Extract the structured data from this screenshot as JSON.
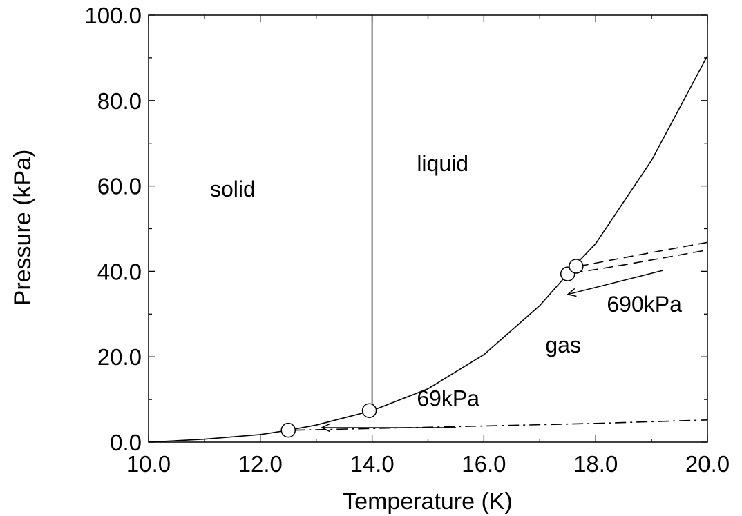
{
  "chart_data": {
    "type": "line",
    "title": "",
    "xlabel": "Temperature (K)",
    "ylabel": "Pressure (kPa)",
    "xlim": [
      10.0,
      20.0
    ],
    "ylim": [
      0.0,
      100.0
    ],
    "x_ticks": [
      10.0,
      12.0,
      14.0,
      16.0,
      18.0,
      20.0
    ],
    "y_ticks": [
      0.0,
      20.0,
      40.0,
      60.0,
      80.0,
      100.0
    ],
    "x_tick_labels": [
      "10.0",
      "12.0",
      "14.0",
      "16.0",
      "18.0",
      "20.0"
    ],
    "y_tick_labels": [
      "0.0",
      "20.0",
      "40.0",
      "60.0",
      "80.0",
      "100.0"
    ],
    "grid": false,
    "series": [
      {
        "style": "solid",
        "x": [
          10.0,
          11.0,
          12.0,
          12.5,
          13.0,
          14.0,
          15.0,
          16.0,
          17.0,
          17.5,
          17.6,
          18.0,
          19.0,
          20.0
        ],
        "y": [
          0.0,
          0.7,
          1.8,
          2.8,
          4.0,
          7.4,
          12.5,
          20.5,
          32.0,
          39.4,
          41.0,
          46.5,
          66.0,
          90.5
        ]
      },
      {
        "style": "solid",
        "x": [
          14.0,
          14.0
        ],
        "y": [
          7.4,
          100.0
        ]
      },
      {
        "style": "dashdot",
        "x": [
          12.6,
          14.0,
          16.0,
          18.0,
          20.0
        ],
        "y": [
          2.8,
          3.2,
          3.8,
          4.4,
          5.2
        ]
      },
      {
        "style": "dashed",
        "x": [
          17.7,
          18.5,
          20.0
        ],
        "y": [
          41.2,
          43.2,
          46.8
        ]
      },
      {
        "style": "dashed",
        "x": [
          17.6,
          18.5,
          20.0
        ],
        "y": [
          39.6,
          41.5,
          45.0
        ]
      }
    ],
    "markers": [
      {
        "x": 12.5,
        "y": 2.8
      },
      {
        "x": 13.95,
        "y": 7.4
      },
      {
        "x": 17.5,
        "y": 39.4
      },
      {
        "x": 17.65,
        "y": 41.2
      }
    ],
    "arrows": [
      {
        "from": [
          15.5,
          3.4
        ],
        "to": [
          13.1,
          3.4
        ]
      },
      {
        "from": [
          19.2,
          40.2
        ],
        "to": [
          17.5,
          34.6
        ]
      }
    ],
    "annotations": [
      {
        "text": "solid",
        "x": 11.1,
        "y": 57.5
      },
      {
        "text": "liquid",
        "x": 14.8,
        "y": 63.5
      },
      {
        "text": "gas",
        "x": 17.1,
        "y": 21.0
      },
      {
        "text": "690kPa",
        "x": 18.2,
        "y": 30.5
      },
      {
        "text": "69kPa",
        "x": 14.8,
        "y": 8.5
      }
    ]
  }
}
